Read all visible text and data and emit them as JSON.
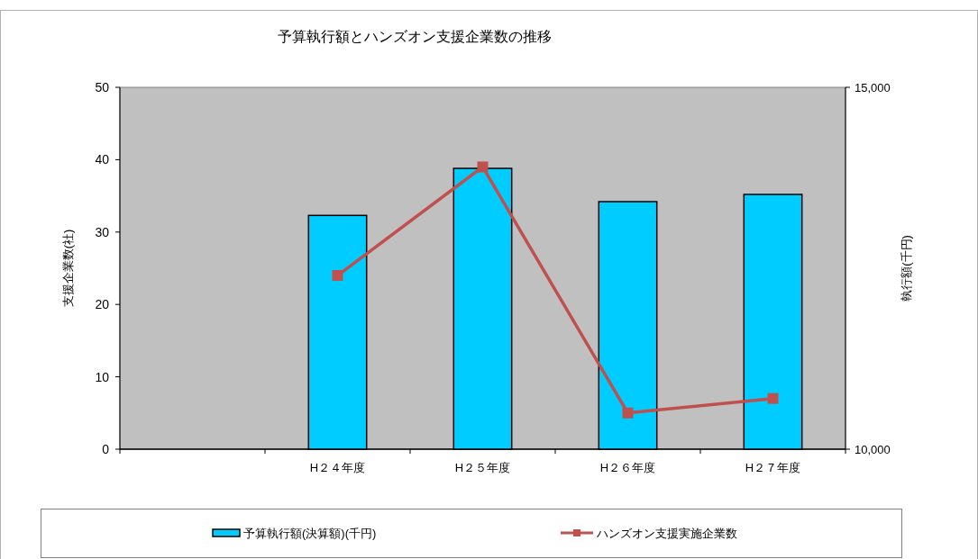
{
  "chart_data": {
    "type": "bar",
    "title": "予算執行額とハンズオン支援企業数の推移",
    "ylabel": "支援企業数(社)",
    "y2label": "執行額(千円)",
    "categories": [
      null,
      "H２４年度",
      "H２５年度",
      "H２６年度",
      "H２７年度"
    ],
    "series": [
      {
        "name": "予算執行額(決算額)(千円)",
        "axis": "y2",
        "color": "#00ccff",
        "values": [
          null,
          13230,
          13880,
          13420,
          13520
        ]
      },
      {
        "name": "ハンズオン支援実施企業数",
        "type": "line",
        "axis": "y",
        "color": "#c0504d",
        "marker": "square",
        "values": [
          null,
          24,
          39,
          5,
          7
        ]
      }
    ],
    "ylim": [
      0,
      50
    ],
    "yticks": [
      0,
      10,
      20,
      30,
      40,
      50
    ],
    "y2lim": [
      10000,
      15000
    ],
    "y2ticks": [
      {
        "value": 10000,
        "label": "10,000"
      },
      {
        "value": 15000,
        "label": "15,000"
      }
    ],
    "grid": false,
    "legend": "bottom"
  }
}
